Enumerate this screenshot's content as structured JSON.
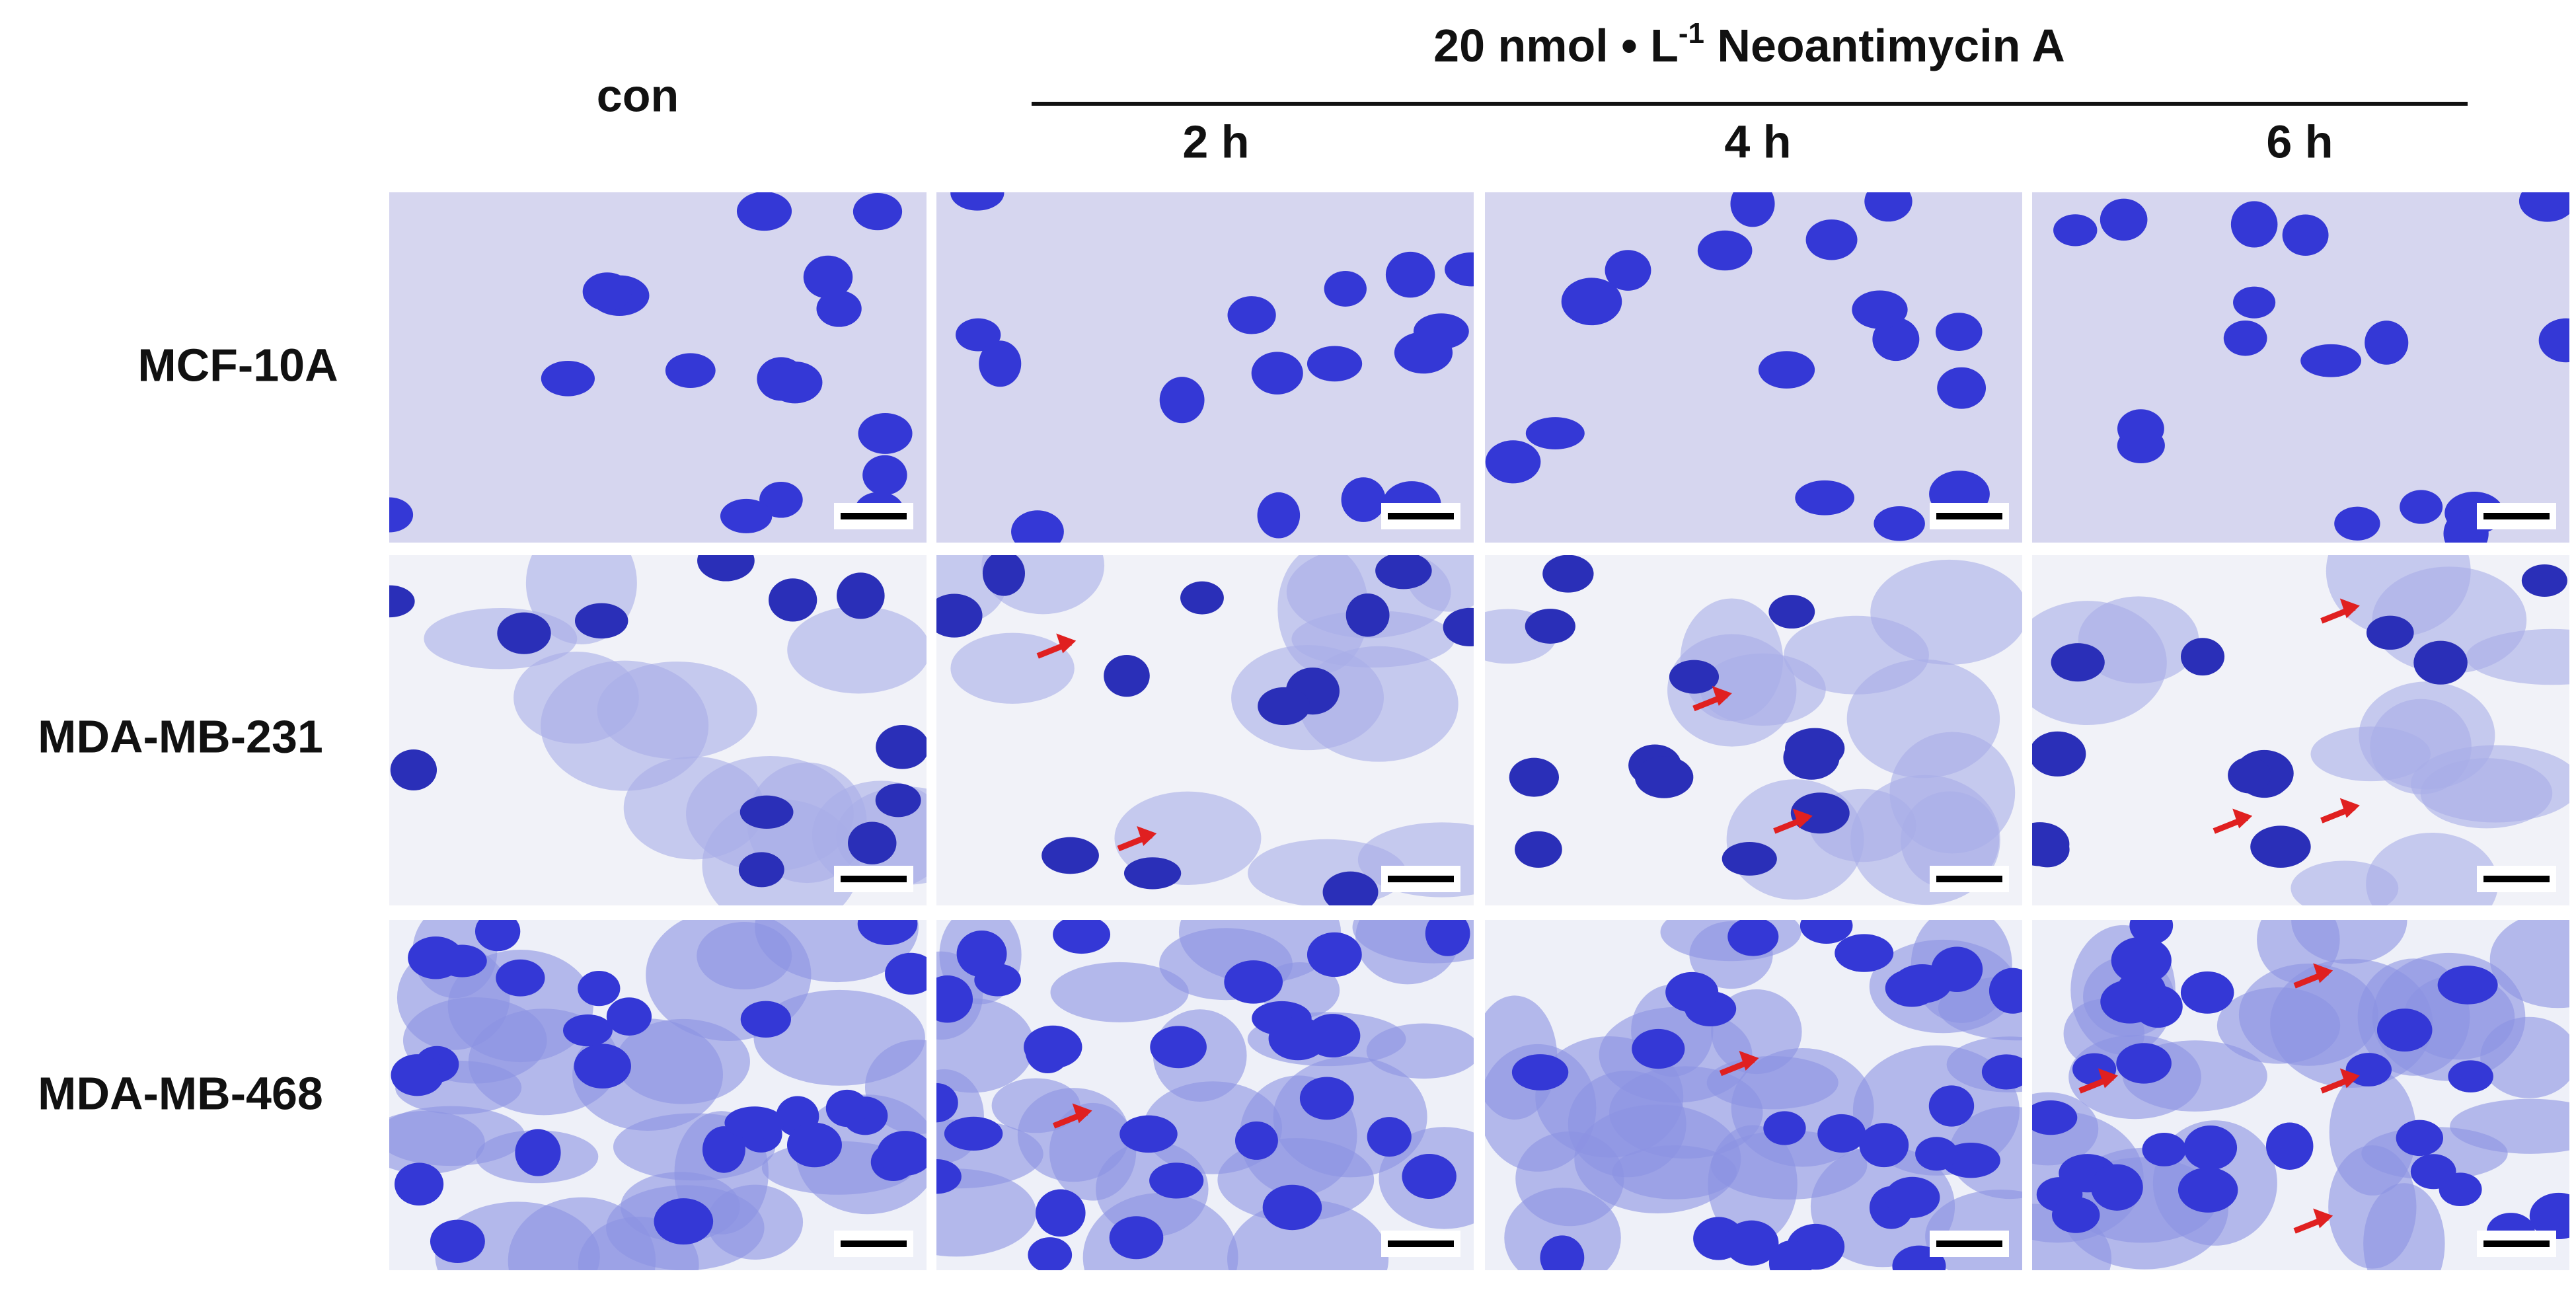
{
  "header": {
    "control": "con",
    "treatment": {
      "prefix": "20 nmol • L",
      "superscript": "-1",
      "suffix": " Neoantimycin A"
    },
    "timepoints": [
      "2 h",
      "4 h",
      "6 h"
    ]
  },
  "rows": [
    "MCF-10A",
    "MDA-MB-231",
    "MDA-MB-468"
  ]
}
